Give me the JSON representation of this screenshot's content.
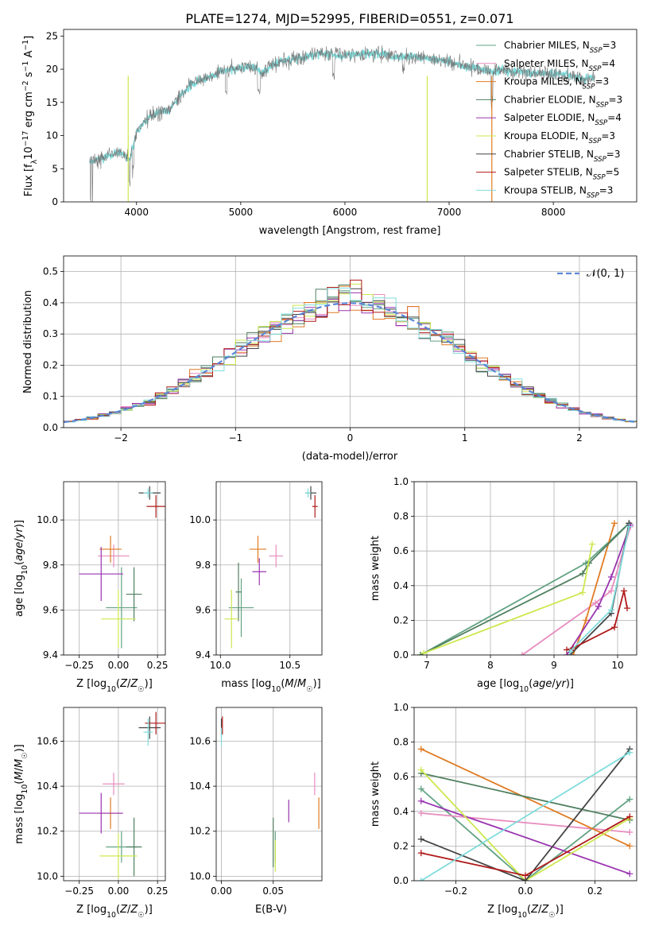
{
  "title": "PLATE=1274, MJD=52995, FIBERID=0551, z=0.071",
  "models": [
    {
      "name": "Chabrier MILES, N",
      "sub": "SSP",
      "suffix": "=3",
      "color": "#62a383"
    },
    {
      "name": "Salpeter MILES, N",
      "sub": "SSP",
      "suffix": "=4",
      "color": "#e88cbf"
    },
    {
      "name": "Kroupa MILES, N",
      "sub": "SSP",
      "suffix": "=3",
      "color": "#e07b22"
    },
    {
      "name": "Chabrier ELODIE, N",
      "sub": "SSP",
      "suffix": "=3",
      "color": "#4f7f5f"
    },
    {
      "name": "Salpeter ELODIE, N",
      "sub": "SSP",
      "suffix": "=4",
      "color": "#9a34b0"
    },
    {
      "name": "Kroupa ELODIE, N",
      "sub": "SSP",
      "suffix": "=3",
      "color": "#cde84f"
    },
    {
      "name": "Chabrier STELIB, N",
      "sub": "SSP",
      "suffix": "=3",
      "color": "#444444"
    },
    {
      "name": "Salpeter STELIB, N",
      "sub": "SSP",
      "suffix": "=5",
      "color": "#b01a1a"
    },
    {
      "name": "Kroupa STELIB, N",
      "sub": "SSP",
      "suffix": "=3",
      "color": "#80dcdc"
    }
  ],
  "chart_data": [
    {
      "type": "line",
      "panel": "spectrum",
      "xlabel": "wavelength [Angstrom, rest frame]",
      "ylabel": "Flux [fλ 10⁻¹⁷ erg cm⁻² s⁻¹ A⁻¹]",
      "xlim": [
        3300,
        8800
      ],
      "ylim": [
        0,
        26
      ],
      "xticks": [
        4000,
        5000,
        6000,
        7000,
        8000
      ],
      "yticks": [
        0,
        5,
        10,
        15,
        20,
        25
      ],
      "grid": false,
      "legend": "top-right",
      "continuum": [
        [
          3550,
          6
        ],
        [
          3700,
          6.8
        ],
        [
          3850,
          7.5
        ],
        [
          3930,
          6.2
        ],
        [
          4000,
          10.5
        ],
        [
          4100,
          12.5
        ],
        [
          4200,
          13.5
        ],
        [
          4300,
          13.6
        ],
        [
          4400,
          15.5
        ],
        [
          4500,
          17.5
        ],
        [
          4600,
          18.2
        ],
        [
          4700,
          18.8
        ],
        [
          4800,
          19.6
        ],
        [
          4900,
          20
        ],
        [
          5000,
          20.2
        ],
        [
          5100,
          20.5
        ],
        [
          5200,
          19.5
        ],
        [
          5300,
          20.6
        ],
        [
          5400,
          21.2
        ],
        [
          5500,
          21.5
        ],
        [
          5600,
          21.8
        ],
        [
          5700,
          22.2
        ],
        [
          5800,
          22.4
        ],
        [
          5900,
          22.3
        ],
        [
          6000,
          22.1
        ],
        [
          6100,
          22.3
        ],
        [
          6200,
          22.2
        ],
        [
          6300,
          22.4
        ],
        [
          6400,
          22.3
        ],
        [
          6500,
          21.9
        ],
        [
          6600,
          22
        ],
        [
          6700,
          21.8
        ],
        [
          6800,
          21.6
        ],
        [
          6900,
          21.4
        ],
        [
          7000,
          21.2
        ],
        [
          7100,
          20.6
        ],
        [
          7200,
          20.4
        ],
        [
          7300,
          20.1
        ],
        [
          7400,
          19.6
        ],
        [
          7500,
          19.9
        ],
        [
          7600,
          19.6
        ],
        [
          7700,
          19.7
        ],
        [
          7800,
          19.4
        ],
        [
          7900,
          19.5
        ],
        [
          8000,
          19.3
        ],
        [
          8100,
          19.2
        ],
        [
          8200,
          18.9
        ],
        [
          8300,
          18.6
        ],
        [
          8400,
          18.9
        ]
      ],
      "series_color": "#777777",
      "dropouts": [
        [
          3920,
          "#cde84f"
        ],
        [
          6790,
          "#cde84f"
        ],
        [
          7410,
          "#e07b22"
        ]
      ]
    },
    {
      "type": "histogram",
      "panel": "residuals",
      "xlabel": "(data-model)/error",
      "ylabel": "Normed distribution",
      "xlim": [
        -2.5,
        2.5
      ],
      "ylim": [
        0,
        0.55
      ],
      "xticks": [
        -2,
        -1,
        0,
        1,
        2
      ],
      "yticks": [
        0.0,
        0.1,
        0.2,
        0.3,
        0.4,
        0.5
      ],
      "grid": true,
      "legend": "top-right",
      "reference_label": "𝒩(0, 1)",
      "reference_color": "#5b86d6",
      "bin_width": 0.1
    },
    {
      "type": "scatter",
      "panel": "age-vs-Z",
      "xlabel": "Z [log10(Z/Z☉)]",
      "ylabel": "age  [log10(age/yr)]",
      "xlim": [
        -0.35,
        0.3
      ],
      "ylim": [
        9.4,
        10.17
      ],
      "xticks": [
        -0.25,
        0.0,
        0.25
      ],
      "xtick_labels": [
        "−0.25",
        "0.00",
        "0.25"
      ],
      "yticks": [
        9.4,
        9.6,
        9.8,
        10.0
      ],
      "points": [
        {
          "model": 0,
          "x": 0.02,
          "xerr": 0.1,
          "y": 9.61,
          "yerr": 0.18
        },
        {
          "model": 1,
          "x": -0.03,
          "xerr": 0.1,
          "y": 9.84,
          "yerr": 0.05
        },
        {
          "model": 2,
          "x": -0.05,
          "xerr": 0.07,
          "y": 9.87,
          "yerr": 0.06
        },
        {
          "model": 3,
          "x": 0.1,
          "xerr": 0.05,
          "y": 9.67,
          "yerr": 0.12
        },
        {
          "model": 4,
          "x": -0.11,
          "xerr": 0.14,
          "y": 9.76,
          "yerr": 0.12
        },
        {
          "model": 5,
          "x": 0.0,
          "xerr": 0.11,
          "y": 9.56,
          "yerr": 0.13
        },
        {
          "model": 6,
          "x": 0.2,
          "xerr": 0.07,
          "y": 10.12,
          "yerr": 0.03
        },
        {
          "model": 7,
          "x": 0.24,
          "xerr": 0.06,
          "y": 10.06,
          "yerr": 0.05
        },
        {
          "model": 8,
          "x": 0.19,
          "xerr": 0.03,
          "y": 10.12,
          "yerr": 0.02
        }
      ]
    },
    {
      "type": "scatter",
      "panel": "age-vs-mass",
      "xlabel": "mass [log10(M/M☉)]",
      "ylabel": "",
      "xlim": [
        9.97,
        10.73
      ],
      "ylim": [
        9.4,
        10.17
      ],
      "xticks": [
        10.0,
        10.5
      ],
      "xtick_labels": [
        "10.0",
        "10.5"
      ],
      "yticks": [
        9.4,
        9.6,
        9.8,
        10.0
      ],
      "points": [
        {
          "model": 0,
          "x": 10.15,
          "xerr": 0.09,
          "y": 9.61,
          "yerr": 0.13
        },
        {
          "model": 1,
          "x": 10.4,
          "xerr": 0.05,
          "y": 9.84,
          "yerr": 0.05
        },
        {
          "model": 2,
          "x": 10.27,
          "xerr": 0.06,
          "y": 9.87,
          "yerr": 0.06
        },
        {
          "model": 3,
          "x": 10.13,
          "xerr": 0.02,
          "y": 9.68,
          "yerr": 0.13
        },
        {
          "model": 4,
          "x": 10.28,
          "xerr": 0.05,
          "y": 9.77,
          "yerr": 0.06
        },
        {
          "model": 5,
          "x": 10.08,
          "xerr": 0.05,
          "y": 9.56,
          "yerr": 0.13
        },
        {
          "model": 6,
          "x": 10.65,
          "xerr": 0.04,
          "y": 10.12,
          "yerr": 0.03
        },
        {
          "model": 7,
          "x": 10.68,
          "xerr": 0.02,
          "y": 10.06,
          "yerr": 0.05
        },
        {
          "model": 8,
          "x": 10.63,
          "xerr": 0.02,
          "y": 10.12,
          "yerr": 0.02
        }
      ]
    },
    {
      "type": "line",
      "panel": "mass-weight-vs-age",
      "xlabel": "age  [log10(age/yr)]",
      "ylabel": "mass weight",
      "xlim": [
        6.8,
        10.3
      ],
      "ylim": [
        0.0,
        1.0
      ],
      "xticks": [
        7,
        8,
        9,
        10
      ],
      "yticks": [
        0.0,
        0.2,
        0.4,
        0.6,
        0.8,
        1.0
      ],
      "grid": true,
      "series": [
        {
          "model": 0,
          "points": [
            [
              6.9,
              0.0
            ],
            [
              9.5,
              0.53
            ],
            [
              10.18,
              0.76
            ]
          ]
        },
        {
          "model": 1,
          "points": [
            [
              8.5,
              0.0
            ],
            [
              9.65,
              0.3
            ],
            [
              9.9,
              0.37
            ],
            [
              10.2,
              0.74
            ]
          ]
        },
        {
          "model": 2,
          "points": [
            [
              9.3,
              0.0
            ],
            [
              9.5,
              0.2
            ],
            [
              9.95,
              0.76
            ]
          ]
        },
        {
          "model": 3,
          "points": [
            [
              6.9,
              0.0
            ],
            [
              9.45,
              0.47
            ],
            [
              9.55,
              0.53
            ],
            [
              10.18,
              0.76
            ]
          ]
        },
        {
          "model": 4,
          "points": [
            [
              9.2,
              0.0
            ],
            [
              9.7,
              0.28
            ],
            [
              9.9,
              0.45
            ],
            [
              10.2,
              0.75
            ]
          ]
        },
        {
          "model": 5,
          "points": [
            [
              6.95,
              0.01
            ],
            [
              9.45,
              0.36
            ],
            [
              9.6,
              0.64
            ]
          ]
        },
        {
          "model": 6,
          "points": [
            [
              9.25,
              0.0
            ],
            [
              9.9,
              0.24
            ],
            [
              10.18,
              0.76
            ]
          ]
        },
        {
          "model": 7,
          "points": [
            [
              9.2,
              0.03
            ],
            [
              9.3,
              0.04
            ],
            [
              9.95,
              0.16
            ],
            [
              10.1,
              0.37
            ],
            [
              10.15,
              0.27
            ]
          ]
        },
        {
          "model": 8,
          "points": [
            [
              9.25,
              0.02
            ],
            [
              9.9,
              0.26
            ],
            [
              10.18,
              0.74
            ]
          ]
        }
      ]
    },
    {
      "type": "scatter",
      "panel": "mass-vs-Z",
      "xlabel": "Z [log10(Z/Z☉)]",
      "ylabel": "mass [log10(M/M☉)]",
      "xlim": [
        -0.35,
        0.3
      ],
      "ylim": [
        9.98,
        10.75
      ],
      "xticks": [
        -0.25,
        0.0,
        0.25
      ],
      "xtick_labels": [
        "−0.25",
        "0.00",
        "0.25"
      ],
      "yticks": [
        10.0,
        10.2,
        10.4,
        10.6
      ],
      "points": [
        {
          "model": 0,
          "x": 0.02,
          "xerr": 0.1,
          "y": 10.13,
          "yerr": 0.07
        },
        {
          "model": 1,
          "x": -0.03,
          "xerr": 0.07,
          "y": 10.41,
          "yerr": 0.05
        },
        {
          "model": 2,
          "x": -0.05,
          "xerr": 0.07,
          "y": 10.28,
          "yerr": 0.07
        },
        {
          "model": 3,
          "x": 0.1,
          "xerr": 0.05,
          "y": 10.13,
          "yerr": 0.13
        },
        {
          "model": 4,
          "x": -0.11,
          "xerr": 0.14,
          "y": 10.28,
          "yerr": 0.09
        },
        {
          "model": 5,
          "x": 0.0,
          "xerr": 0.12,
          "y": 10.09,
          "yerr": 0.1
        },
        {
          "model": 6,
          "x": 0.2,
          "xerr": 0.07,
          "y": 10.66,
          "yerr": 0.05
        },
        {
          "model": 7,
          "x": 0.24,
          "xerr": 0.07,
          "y": 10.68,
          "yerr": 0.05
        },
        {
          "model": 8,
          "x": 0.19,
          "xerr": 0.03,
          "y": 10.64,
          "yerr": 0.06
        }
      ]
    },
    {
      "type": "scatter",
      "panel": "mass-vs-EBV",
      "xlabel": "E(B-V)",
      "ylabel": "",
      "xlim": [
        -0.005,
        0.097
      ],
      "ylim": [
        9.98,
        10.75
      ],
      "xticks": [
        0.0,
        0.05
      ],
      "xtick_labels": [
        "0.00",
        "0.05"
      ],
      "yticks": [
        10.0,
        10.2,
        10.4,
        10.6
      ],
      "points": [
        {
          "model": 0,
          "x": 0.052,
          "xerr": 0,
          "y": 10.13,
          "yerr": 0.07
        },
        {
          "model": 1,
          "x": 0.09,
          "xerr": 0,
          "y": 10.41,
          "yerr": 0.05
        },
        {
          "model": 2,
          "x": 0.094,
          "xerr": 0,
          "y": 10.28,
          "yerr": 0.07
        },
        {
          "model": 3,
          "x": 0.05,
          "xerr": 0,
          "y": 10.15,
          "yerr": 0.11
        },
        {
          "model": 4,
          "x": 0.065,
          "xerr": 0,
          "y": 10.29,
          "yerr": 0.05
        },
        {
          "model": 5,
          "x": 0.052,
          "xerr": 0,
          "y": 10.09,
          "yerr": 0.07
        },
        {
          "model": 6,
          "x": 0.0,
          "xerr": 0,
          "y": 10.66,
          "yerr": 0.04
        },
        {
          "model": 7,
          "x": 0.001,
          "xerr": 0,
          "y": 10.67,
          "yerr": 0.04
        },
        {
          "model": 8,
          "x": 0.0,
          "xerr": 0,
          "y": 10.62,
          "yerr": 0.04
        }
      ]
    },
    {
      "type": "line",
      "panel": "mass-weight-vs-Z",
      "xlabel": "Z [log10(Z/Z☉)]",
      "ylabel": "mass weight",
      "xlim": [
        -0.32,
        0.32
      ],
      "ylim": [
        0.0,
        1.0
      ],
      "xticks": [
        -0.2,
        0.0,
        0.2
      ],
      "xtick_labels": [
        "−0.2",
        "0.0",
        "0.2"
      ],
      "yticks": [
        0.0,
        0.2,
        0.4,
        0.6,
        0.8,
        1.0
      ],
      "grid": true,
      "series": [
        {
          "model": 0,
          "points": [
            [
              -0.3,
              0.53
            ],
            [
              0.0,
              0.0
            ],
            [
              0.3,
              0.47
            ]
          ]
        },
        {
          "model": 1,
          "points": [
            [
              -0.3,
              0.39
            ],
            [
              0.3,
              0.28
            ]
          ]
        },
        {
          "model": 2,
          "points": [
            [
              -0.3,
              0.76
            ],
            [
              0.3,
              0.2
            ]
          ]
        },
        {
          "model": 3,
          "points": [
            [
              -0.3,
              0.62
            ],
            [
              0.3,
              0.35
            ]
          ]
        },
        {
          "model": 4,
          "points": [
            [
              -0.3,
              0.46
            ],
            [
              0.3,
              0.04
            ]
          ]
        },
        {
          "model": 5,
          "points": [
            [
              -0.3,
              0.64
            ],
            [
              0.0,
              0.0
            ],
            [
              0.3,
              0.36
            ]
          ]
        },
        {
          "model": 6,
          "points": [
            [
              -0.3,
              0.24
            ],
            [
              0.0,
              0.0
            ],
            [
              0.3,
              0.76
            ]
          ]
        },
        {
          "model": 7,
          "points": [
            [
              -0.3,
              0.16
            ],
            [
              0.0,
              0.03
            ],
            [
              0.3,
              0.37
            ]
          ]
        },
        {
          "model": 8,
          "points": [
            [
              -0.3,
              0.0
            ],
            [
              0.3,
              0.74
            ]
          ]
        }
      ]
    }
  ]
}
